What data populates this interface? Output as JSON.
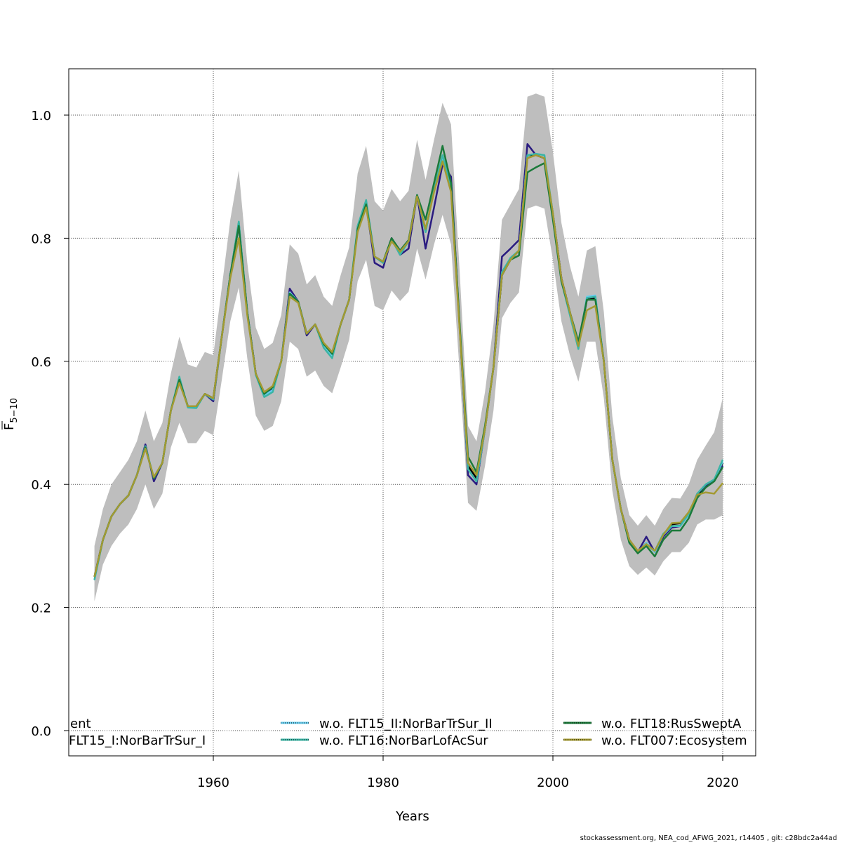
{
  "chart_data": {
    "type": "line",
    "xlabel": "Years",
    "ylabel_main": "F",
    "ylabel_sub": "5−10",
    "xlim": [
      1943,
      2024
    ],
    "ylim": [
      -0.04,
      1.075
    ],
    "x_ticks": [
      1960,
      1980,
      2000,
      2020
    ],
    "y_ticks": [
      0.0,
      0.2,
      0.4,
      0.6,
      0.8,
      1.0
    ],
    "y_tick_labels": [
      "0.0",
      "0.2",
      "0.4",
      "0.6",
      "0.8",
      "1.0"
    ],
    "grid": true,
    "legend_placement": "bottom",
    "band_color": "#bebebe",
    "years_start": 1946,
    "years_end": 2020,
    "band": {
      "lower": [
        0.21,
        0.27,
        0.3,
        0.32,
        0.335,
        0.36,
        0.4,
        0.36,
        0.385,
        0.46,
        0.5,
        0.467,
        0.467,
        0.487,
        0.48,
        0.57,
        0.665,
        0.72,
        0.605,
        0.512,
        0.487,
        0.495,
        0.535,
        0.632,
        0.62,
        0.575,
        0.585,
        0.56,
        0.548,
        0.59,
        0.635,
        0.73,
        0.765,
        0.69,
        0.683,
        0.715,
        0.698,
        0.713,
        0.783,
        0.733,
        0.79,
        0.838,
        0.79,
        0.585,
        0.37,
        0.357,
        0.43,
        0.52,
        0.67,
        0.695,
        0.712,
        0.848,
        0.853,
        0.848,
        0.765,
        0.665,
        0.61,
        0.567,
        0.632,
        0.632,
        0.54,
        0.39,
        0.31,
        0.267,
        0.253,
        0.265,
        0.252,
        0.275,
        0.29,
        0.29,
        0.305,
        0.335,
        0.343,
        0.343,
        0.35
      ],
      "upper": [
        0.3,
        0.36,
        0.4,
        0.42,
        0.44,
        0.47,
        0.52,
        0.47,
        0.5,
        0.58,
        0.64,
        0.595,
        0.59,
        0.615,
        0.61,
        0.72,
        0.83,
        0.91,
        0.76,
        0.655,
        0.62,
        0.63,
        0.675,
        0.79,
        0.775,
        0.725,
        0.74,
        0.705,
        0.69,
        0.74,
        0.785,
        0.905,
        0.95,
        0.86,
        0.845,
        0.88,
        0.86,
        0.877,
        0.96,
        0.895,
        0.96,
        1.02,
        0.985,
        0.75,
        0.495,
        0.47,
        0.55,
        0.66,
        0.83,
        0.855,
        0.88,
        1.03,
        1.035,
        1.03,
        0.94,
        0.825,
        0.755,
        0.705,
        0.78,
        0.787,
        0.68,
        0.51,
        0.41,
        0.35,
        0.333,
        0.35,
        0.333,
        0.36,
        0.378,
        0.377,
        0.4,
        0.44,
        0.463,
        0.485,
        0.54
      ]
    },
    "series": [
      {
        "name": "ent",
        "color": "#000000",
        "values": [
          0.25,
          0.31,
          0.348,
          0.368,
          0.382,
          0.415,
          0.46,
          0.41,
          0.435,
          0.52,
          0.57,
          0.527,
          0.527,
          0.547,
          0.54,
          0.64,
          0.74,
          0.825,
          0.68,
          0.58,
          0.547,
          0.558,
          0.6,
          0.71,
          0.697,
          0.645,
          0.66,
          0.628,
          0.612,
          0.66,
          0.7,
          0.815,
          0.855,
          0.77,
          0.76,
          0.8,
          0.778,
          0.795,
          0.87,
          0.81,
          0.88,
          0.93,
          0.88,
          0.66,
          0.43,
          0.41,
          0.49,
          0.59,
          0.74,
          0.765,
          0.78,
          0.935,
          0.935,
          0.93,
          0.84,
          0.735,
          0.68,
          0.625,
          0.7,
          0.702,
          0.6,
          0.44,
          0.36,
          0.31,
          0.29,
          0.305,
          0.29,
          0.315,
          0.335,
          0.337,
          0.352,
          0.382,
          0.397,
          0.407,
          0.435
        ]
      },
      {
        "name": "FLT15_I:NorBarTrSur_I",
        "color": "#2a1b80",
        "values": [
          0.25,
          0.31,
          0.348,
          0.368,
          0.382,
          0.415,
          0.465,
          0.405,
          0.435,
          0.52,
          0.57,
          0.527,
          0.527,
          0.547,
          0.535,
          0.64,
          0.74,
          0.82,
          0.68,
          0.58,
          0.545,
          0.555,
          0.6,
          0.718,
          0.697,
          0.642,
          0.66,
          0.628,
          0.612,
          0.66,
          0.7,
          0.815,
          0.855,
          0.76,
          0.752,
          0.8,
          0.773,
          0.783,
          0.87,
          0.783,
          0.85,
          0.92,
          0.9,
          0.66,
          0.415,
          0.4,
          0.49,
          0.59,
          0.77,
          0.783,
          0.797,
          0.953,
          0.935,
          0.93,
          0.84,
          0.735,
          0.68,
          0.625,
          0.703,
          0.705,
          0.6,
          0.44,
          0.36,
          0.31,
          0.29,
          0.315,
          0.29,
          0.315,
          0.33,
          0.332,
          0.352,
          0.385,
          0.398,
          0.407,
          0.43
        ]
      },
      {
        "name": "w.o. FLT15_II:NorBarTrSur_II",
        "color": "#66ccee",
        "values": [
          0.245,
          0.31,
          0.348,
          0.368,
          0.382,
          0.415,
          0.462,
          0.41,
          0.435,
          0.52,
          0.573,
          0.527,
          0.525,
          0.547,
          0.538,
          0.64,
          0.74,
          0.825,
          0.68,
          0.578,
          0.545,
          0.553,
          0.6,
          0.712,
          0.697,
          0.645,
          0.66,
          0.625,
          0.608,
          0.66,
          0.7,
          0.82,
          0.86,
          0.77,
          0.76,
          0.798,
          0.775,
          0.795,
          0.87,
          0.81,
          0.88,
          0.932,
          0.885,
          0.66,
          0.425,
          0.405,
          0.49,
          0.59,
          0.745,
          0.768,
          0.78,
          0.935,
          0.937,
          0.935,
          0.84,
          0.733,
          0.68,
          0.623,
          0.705,
          0.707,
          0.6,
          0.44,
          0.36,
          0.308,
          0.29,
          0.305,
          0.29,
          0.318,
          0.332,
          0.332,
          0.35,
          0.385,
          0.4,
          0.408,
          0.437
        ]
      },
      {
        "name": "w.o. FLT16:NorBarLofAcSur",
        "color": "#3bb5a5",
        "values": [
          0.245,
          0.31,
          0.348,
          0.368,
          0.382,
          0.415,
          0.462,
          0.41,
          0.435,
          0.52,
          0.575,
          0.525,
          0.524,
          0.547,
          0.538,
          0.64,
          0.74,
          0.827,
          0.68,
          0.578,
          0.542,
          0.55,
          0.6,
          0.71,
          0.697,
          0.645,
          0.66,
          0.622,
          0.605,
          0.66,
          0.7,
          0.82,
          0.862,
          0.77,
          0.76,
          0.798,
          0.773,
          0.795,
          0.87,
          0.81,
          0.88,
          0.935,
          0.885,
          0.66,
          0.425,
          0.405,
          0.49,
          0.59,
          0.745,
          0.768,
          0.78,
          0.935,
          0.937,
          0.935,
          0.84,
          0.73,
          0.675,
          0.62,
          0.703,
          0.705,
          0.6,
          0.44,
          0.36,
          0.305,
          0.29,
          0.303,
          0.292,
          0.32,
          0.332,
          0.333,
          0.352,
          0.385,
          0.4,
          0.408,
          0.44
        ]
      },
      {
        "name": "w.o. FLT18:RusSweptA",
        "color": "#1b7a3a",
        "values": [
          0.25,
          0.31,
          0.348,
          0.368,
          0.382,
          0.415,
          0.46,
          0.41,
          0.435,
          0.52,
          0.57,
          0.527,
          0.527,
          0.547,
          0.54,
          0.64,
          0.74,
          0.82,
          0.68,
          0.58,
          0.547,
          0.558,
          0.6,
          0.71,
          0.697,
          0.645,
          0.66,
          0.628,
          0.612,
          0.66,
          0.7,
          0.815,
          0.855,
          0.77,
          0.762,
          0.8,
          0.78,
          0.797,
          0.87,
          0.83,
          0.89,
          0.95,
          0.89,
          0.665,
          0.445,
          0.42,
          0.495,
          0.59,
          0.74,
          0.765,
          0.772,
          0.907,
          0.915,
          0.922,
          0.83,
          0.73,
          0.68,
          0.632,
          0.7,
          0.7,
          0.6,
          0.44,
          0.36,
          0.305,
          0.288,
          0.3,
          0.283,
          0.31,
          0.325,
          0.325,
          0.345,
          0.378,
          0.395,
          0.405,
          0.428
        ]
      },
      {
        "name": "w.o. FLT007:Ecosystem",
        "color": "#a39a32",
        "values": [
          0.25,
          0.31,
          0.348,
          0.368,
          0.382,
          0.415,
          0.458,
          0.412,
          0.435,
          0.52,
          0.565,
          0.527,
          0.527,
          0.547,
          0.54,
          0.64,
          0.735,
          0.8,
          0.675,
          0.58,
          0.55,
          0.56,
          0.6,
          0.705,
          0.695,
          0.645,
          0.66,
          0.63,
          0.615,
          0.66,
          0.7,
          0.81,
          0.85,
          0.77,
          0.762,
          0.795,
          0.778,
          0.795,
          0.868,
          0.815,
          0.875,
          0.925,
          0.875,
          0.655,
          0.435,
          0.415,
          0.49,
          0.59,
          0.74,
          0.765,
          0.78,
          0.93,
          0.935,
          0.93,
          0.84,
          0.735,
          0.68,
          0.625,
          0.683,
          0.69,
          0.6,
          0.44,
          0.36,
          0.31,
          0.292,
          0.303,
          0.292,
          0.318,
          0.337,
          0.338,
          0.355,
          0.383,
          0.387,
          0.385,
          0.402
        ]
      }
    ],
    "legend": {
      "col1": [
        "ent",
        "FLT15_I:NorBarTrSur_I"
      ],
      "col2": [
        "w.o. FLT15_II:NorBarTrSur_II",
        "w.o. FLT16:NorBarLofAcSur"
      ],
      "col3": [
        "w.o. FLT18:RusSweptA",
        "w.o. FLT007:Ecosystem"
      ]
    }
  },
  "footer": "stockassessment.org, NEA_cod_AFWG_2021, r14405 , git: c28bdc2a44ad"
}
